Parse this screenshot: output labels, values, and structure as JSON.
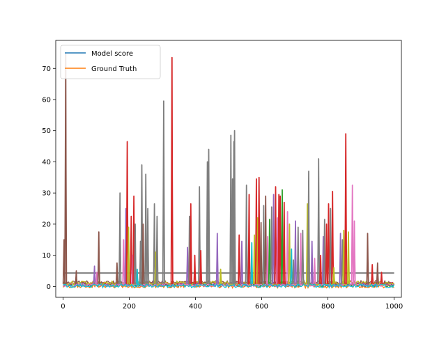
{
  "chart_data": {
    "type": "line",
    "title": "",
    "xlabel": "",
    "ylabel": "",
    "xlim": [
      -22,
      1022
    ],
    "ylim": [
      -3.5,
      79
    ],
    "x_ticks": [
      0,
      200,
      400,
      600,
      800,
      1000
    ],
    "y_ticks": [
      0,
      10,
      20,
      30,
      40,
      50,
      60,
      70
    ],
    "legend_position": "upper-left",
    "grid": false,
    "legend": [
      {
        "name": "Model score",
        "color": "#1f77b4"
      },
      {
        "name": "Ground Truth",
        "color": "#ff7f0e"
      }
    ],
    "baseline_series": [
      {
        "name": "Model score",
        "color": "#1f77b4",
        "level": 0.3
      },
      {
        "name": "Ground Truth",
        "color": "#ff7f0e",
        "level": 0.1
      },
      {
        "color": "#2ca02c",
        "level": 0.6
      },
      {
        "color": "#d62728",
        "level": 1.0
      },
      {
        "color": "#9467bd",
        "level": 0.8
      },
      {
        "color": "#8c564b",
        "level": 1.3
      },
      {
        "color": "#e377c2",
        "level": 0.5
      },
      {
        "color": "#bcbd22",
        "level": 1.1
      },
      {
        "color": "#17becf",
        "level": 0.2
      }
    ],
    "flat_series": [
      {
        "color": "#7f7f7f",
        "level": 4.3,
        "x_range": [
          0,
          1000
        ]
      }
    ],
    "spikes": [
      {
        "color": "#8c564b",
        "x": 3,
        "y": 15
      },
      {
        "color": "#8c564b",
        "x": 8,
        "y": 75
      },
      {
        "color": "#8c564b",
        "x": 40,
        "y": 5
      },
      {
        "color": "#9467bd",
        "x": 95,
        "y": 6.5
      },
      {
        "color": "#e377c2",
        "x": 102,
        "y": 4.5
      },
      {
        "color": "#8c564b",
        "x": 108,
        "y": 17.5
      },
      {
        "color": "#8c564b",
        "x": 163,
        "y": 7.5
      },
      {
        "color": "#7f7f7f",
        "x": 172,
        "y": 30
      },
      {
        "color": "#e377c2",
        "x": 183,
        "y": 15
      },
      {
        "color": "#9467bd",
        "x": 190,
        "y": 25
      },
      {
        "color": "#d62728",
        "x": 194,
        "y": 46.5
      },
      {
        "color": "#bcbd22",
        "x": 198,
        "y": 19
      },
      {
        "color": "#d62728",
        "x": 206,
        "y": 22.5
      },
      {
        "color": "#e377c2",
        "x": 210,
        "y": 10
      },
      {
        "color": "#d62728",
        "x": 214,
        "y": 29
      },
      {
        "color": "#7f7f7f",
        "x": 218,
        "y": 20
      },
      {
        "color": "#17becf",
        "x": 224,
        "y": 5.5
      },
      {
        "color": "#7f7f7f",
        "x": 234,
        "y": 14.5
      },
      {
        "color": "#7f7f7f",
        "x": 238,
        "y": 39
      },
      {
        "color": "#8c564b",
        "x": 242,
        "y": 20
      },
      {
        "color": "#7f7f7f",
        "x": 250,
        "y": 36
      },
      {
        "color": "#7f7f7f",
        "x": 256,
        "y": 25
      },
      {
        "color": "#7f7f7f",
        "x": 276,
        "y": 26.5
      },
      {
        "color": "#bcbd22",
        "x": 280,
        "y": 11
      },
      {
        "color": "#7f7f7f",
        "x": 284,
        "y": 22.5
      },
      {
        "color": "#7f7f7f",
        "x": 304,
        "y": 59.5
      },
      {
        "color": "#d62728",
        "x": 329,
        "y": 73.5
      },
      {
        "color": "#9467bd",
        "x": 376,
        "y": 12.5
      },
      {
        "color": "#7f7f7f",
        "x": 382,
        "y": 22.5
      },
      {
        "color": "#d62728",
        "x": 386,
        "y": 26.5
      },
      {
        "color": "#d62728",
        "x": 398,
        "y": 10
      },
      {
        "color": "#7f7f7f",
        "x": 412,
        "y": 32
      },
      {
        "color": "#d62728",
        "x": 416,
        "y": 11.5
      },
      {
        "color": "#7f7f7f",
        "x": 436,
        "y": 40
      },
      {
        "color": "#7f7f7f",
        "x": 440,
        "y": 44
      },
      {
        "color": "#9467bd",
        "x": 466,
        "y": 17
      },
      {
        "color": "#bcbd22",
        "x": 476,
        "y": 5.5
      },
      {
        "color": "#7f7f7f",
        "x": 507,
        "y": 48.5
      },
      {
        "color": "#7f7f7f",
        "x": 512,
        "y": 34.5
      },
      {
        "color": "#7f7f7f",
        "x": 516,
        "y": 46.5
      },
      {
        "color": "#7f7f7f",
        "x": 518,
        "y": 50
      },
      {
        "color": "#d62728",
        "x": 532,
        "y": 16.5
      },
      {
        "color": "#9467bd",
        "x": 540,
        "y": 14.5
      },
      {
        "color": "#7f7f7f",
        "x": 554,
        "y": 32.5
      },
      {
        "color": "#d62728",
        "x": 562,
        "y": 29.5
      },
      {
        "color": "#17becf",
        "x": 570,
        "y": 14
      },
      {
        "color": "#bcbd22",
        "x": 578,
        "y": 16.5
      },
      {
        "color": "#d62728",
        "x": 584,
        "y": 34.5
      },
      {
        "color": "#bcbd22",
        "x": 588,
        "y": 22
      },
      {
        "color": "#d62728",
        "x": 592,
        "y": 35
      },
      {
        "color": "#8c564b",
        "x": 598,
        "y": 20.5
      },
      {
        "color": "#7f7f7f",
        "x": 606,
        "y": 26
      },
      {
        "color": "#8c564b",
        "x": 612,
        "y": 29
      },
      {
        "color": "#e377c2",
        "x": 618,
        "y": 16
      },
      {
        "color": "#2ca02c",
        "x": 624,
        "y": 21.5
      },
      {
        "color": "#7f7f7f",
        "x": 630,
        "y": 25.5
      },
      {
        "color": "#9467bd",
        "x": 636,
        "y": 29.5
      },
      {
        "color": "#d62728",
        "x": 642,
        "y": 32
      },
      {
        "color": "#e377c2",
        "x": 648,
        "y": 22
      },
      {
        "color": "#d62728",
        "x": 652,
        "y": 29.5
      },
      {
        "color": "#d62728",
        "x": 656,
        "y": 29
      },
      {
        "color": "#2ca02c",
        "x": 662,
        "y": 31
      },
      {
        "color": "#d62728",
        "x": 668,
        "y": 27
      },
      {
        "color": "#e377c2",
        "x": 678,
        "y": 24
      },
      {
        "color": "#bcbd22",
        "x": 684,
        "y": 20
      },
      {
        "color": "#17becf",
        "x": 690,
        "y": 12
      },
      {
        "color": "#7f7f7f",
        "x": 696,
        "y": 8.5
      },
      {
        "color": "#9467bd",
        "x": 702,
        "y": 21
      },
      {
        "color": "#7f7f7f",
        "x": 710,
        "y": 19
      },
      {
        "color": "#e377c2",
        "x": 718,
        "y": 17
      },
      {
        "color": "#7f7f7f",
        "x": 724,
        "y": 18
      },
      {
        "color": "#bcbd22",
        "x": 738,
        "y": 26.5
      },
      {
        "color": "#7f7f7f",
        "x": 742,
        "y": 37
      },
      {
        "color": "#9467bd",
        "x": 752,
        "y": 14.5
      },
      {
        "color": "#e377c2",
        "x": 760,
        "y": 9
      },
      {
        "color": "#7f7f7f",
        "x": 772,
        "y": 41
      },
      {
        "color": "#d62728",
        "x": 778,
        "y": 10
      },
      {
        "color": "#9467bd",
        "x": 786,
        "y": 16
      },
      {
        "color": "#7f7f7f",
        "x": 790,
        "y": 21.5
      },
      {
        "color": "#d62728",
        "x": 796,
        "y": 20
      },
      {
        "color": "#d62728",
        "x": 802,
        "y": 26.5
      },
      {
        "color": "#7f7f7f",
        "x": 808,
        "y": 25
      },
      {
        "color": "#d62728",
        "x": 814,
        "y": 30.5
      },
      {
        "color": "#bcbd22",
        "x": 818,
        "y": 6
      },
      {
        "color": "#9467bd",
        "x": 838,
        "y": 17
      },
      {
        "color": "#7f7f7f",
        "x": 844,
        "y": 15
      },
      {
        "color": "#bcbd22",
        "x": 848,
        "y": 18
      },
      {
        "color": "#d62728",
        "x": 854,
        "y": 49
      },
      {
        "color": "#bcbd22",
        "x": 862,
        "y": 17.5
      },
      {
        "color": "#e377c2",
        "x": 874,
        "y": 32.5
      },
      {
        "color": "#e377c2",
        "x": 880,
        "y": 21
      },
      {
        "color": "#8c564b",
        "x": 920,
        "y": 17
      },
      {
        "color": "#d62728",
        "x": 934,
        "y": 7
      },
      {
        "color": "#8c564b",
        "x": 950,
        "y": 7.5
      },
      {
        "color": "#d62728",
        "x": 962,
        "y": 4.5
      }
    ]
  }
}
